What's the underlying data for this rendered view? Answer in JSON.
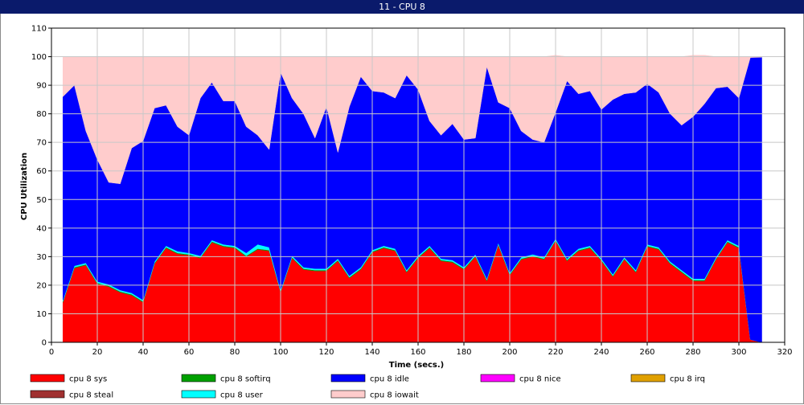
{
  "window": {
    "title": "11 - CPU 8"
  },
  "chart_data": {
    "type": "area",
    "title": "11 - CPU 8",
    "xlabel": "Time (secs.)",
    "ylabel": "CPU Utilization",
    "xlim": [
      0,
      320
    ],
    "ylim": [
      0,
      110
    ],
    "xticks": [
      0,
      20,
      40,
      60,
      80,
      100,
      120,
      140,
      160,
      180,
      200,
      220,
      240,
      260,
      280,
      300,
      320
    ],
    "yticks": [
      0,
      10,
      20,
      30,
      40,
      50,
      60,
      70,
      80,
      90,
      100,
      110
    ],
    "grid": true,
    "legend_position": "bottom",
    "x": [
      5,
      10,
      15,
      20,
      25,
      30,
      35,
      40,
      45,
      50,
      55,
      60,
      65,
      70,
      75,
      80,
      85,
      90,
      95,
      100,
      105,
      110,
      115,
      120,
      125,
      130,
      135,
      140,
      145,
      150,
      155,
      160,
      165,
      170,
      175,
      180,
      185,
      190,
      195,
      200,
      205,
      210,
      215,
      220,
      225,
      230,
      235,
      240,
      245,
      250,
      255,
      260,
      265,
      270,
      275,
      280,
      285,
      290,
      295,
      300,
      305,
      310
    ],
    "stack_order": [
      "cpu 8 sys",
      "cpu 8 softirq",
      "cpu 8 nice",
      "cpu 8 irq",
      "cpu 8 steal",
      "cpu 8 user",
      "cpu 8 idle",
      "cpu 8 iowait"
    ],
    "series": [
      {
        "name": "cpu 8 sys",
        "color": "#ff0000",
        "values": [
          14.0,
          26.0,
          27.0,
          20.5,
          19.5,
          17.5,
          16.5,
          14.0,
          27.5,
          33.0,
          31.0,
          30.5,
          29.5,
          35.0,
          33.5,
          33.0,
          30.0,
          32.5,
          32.0,
          17.5,
          29.5,
          25.5,
          25.0,
          25.0,
          28.5,
          22.5,
          25.5,
          31.5,
          33.0,
          32.0,
          24.5,
          29.5,
          33.0,
          28.5,
          28.0,
          25.5,
          30.0,
          21.5,
          34.0,
          23.5,
          29.0,
          30.0,
          29.0,
          35.5,
          28.5,
          32.0,
          33.0,
          28.5,
          23.0,
          29.0,
          24.5,
          33.5,
          32.5,
          27.5,
          24.5,
          21.5,
          21.5,
          29.0,
          35.0,
          33.0,
          1.0,
          0.0
        ]
      },
      {
        "name": "cpu 8 softirq",
        "color": "#00a000",
        "values": [
          0.3,
          0.3,
          0.3,
          0.3,
          0.3,
          0.3,
          0.3,
          0.3,
          0.3,
          0.3,
          0.3,
          0.3,
          0.3,
          0.3,
          0.3,
          0.3,
          0.3,
          0.3,
          0.3,
          0.3,
          0.3,
          0.3,
          0.3,
          0.3,
          0.3,
          0.3,
          0.3,
          0.3,
          0.3,
          0.3,
          0.3,
          0.3,
          0.3,
          0.3,
          0.3,
          0.3,
          0.3,
          0.3,
          0.3,
          0.3,
          0.3,
          0.3,
          0.3,
          0.3,
          0.3,
          0.3,
          0.3,
          0.3,
          0.3,
          0.3,
          0.3,
          0.3,
          0.3,
          0.3,
          0.3,
          0.3,
          0.3,
          0.3,
          0.3,
          0.3,
          0.0,
          0.0
        ]
      },
      {
        "name": "cpu 8 nice",
        "color": "#ff00ff",
        "values": [
          0,
          0,
          0,
          0,
          0,
          0,
          0,
          0,
          0,
          0,
          0,
          0,
          0,
          0,
          0,
          0,
          0,
          0,
          0,
          0,
          0,
          0,
          0,
          0,
          0,
          0,
          0,
          0,
          0,
          0,
          0,
          0,
          0,
          0,
          0,
          0,
          0,
          0,
          0,
          0,
          0,
          0,
          0,
          0,
          0,
          0,
          0,
          0,
          0,
          0,
          0,
          0,
          0,
          0,
          0,
          0,
          0,
          0,
          0,
          0,
          0,
          0
        ]
      },
      {
        "name": "cpu 8 irq",
        "color": "#e0a000",
        "values": [
          0,
          0,
          0,
          0,
          0,
          0,
          0,
          0,
          0,
          0,
          0,
          0,
          0,
          0,
          0,
          0,
          0,
          0,
          0,
          0,
          0,
          0,
          0,
          0,
          0,
          0,
          0,
          0,
          0,
          0,
          0,
          0,
          0,
          0,
          0,
          0,
          0,
          0,
          0,
          0,
          0,
          0,
          0,
          0,
          0,
          0,
          0,
          0,
          0,
          0,
          0,
          0,
          0,
          0,
          0,
          0,
          0,
          0,
          0,
          0,
          0,
          0
        ]
      },
      {
        "name": "cpu 8 steal",
        "color": "#a03030",
        "values": [
          0,
          0,
          0,
          0,
          0,
          0,
          0,
          0,
          0,
          0,
          0,
          0,
          0,
          0,
          0,
          0,
          0,
          0,
          0,
          0,
          0,
          0,
          0,
          0,
          0,
          0,
          0,
          0,
          0,
          0,
          0,
          0,
          0,
          0,
          0,
          0,
          0,
          0,
          0,
          0,
          0,
          0,
          0,
          0,
          0,
          0,
          0,
          0,
          0,
          0,
          0,
          0,
          0,
          0,
          0,
          0,
          0,
          0,
          0,
          0,
          0,
          0
        ]
      },
      {
        "name": "cpu 8 user",
        "color": "#00ffff",
        "values": [
          0.5,
          0.5,
          0.5,
          0.5,
          0.5,
          0.5,
          0.5,
          0.5,
          0.5,
          0.5,
          0.6,
          0.5,
          0.5,
          0.5,
          0.5,
          0.5,
          1.0,
          1.5,
          1.0,
          0.5,
          0.5,
          0.5,
          0.5,
          0.5,
          0.5,
          0.5,
          0.5,
          0.5,
          0.5,
          0.5,
          0.5,
          0.5,
          0.5,
          0.5,
          0.5,
          0.5,
          0.5,
          0.5,
          0.5,
          0.5,
          0.5,
          0.5,
          0.5,
          0.5,
          0.5,
          0.5,
          0.5,
          0.5,
          0.5,
          0.5,
          0.5,
          0.5,
          0.5,
          0.5,
          0.5,
          0.5,
          0.5,
          0.5,
          0.5,
          0.5,
          0.0,
          0.0
        ]
      },
      {
        "name": "cpu 8 idle",
        "color": "#0000ff",
        "values": [
          71.2,
          63.2,
          46.2,
          42.7,
          35.7,
          37.2,
          50.7,
          55.7,
          53.7,
          49.2,
          43.6,
          41.2,
          55.2,
          55.2,
          50.2,
          50.7,
          44.2,
          38.2,
          34.2,
          76.2,
          55.2,
          53.7,
          45.7,
          56.7,
          37.2,
          59.2,
          66.7,
          55.7,
          53.7,
          52.7,
          68.2,
          58.2,
          43.7,
          43.2,
          47.7,
          44.7,
          40.7,
          74.2,
          49.2,
          57.7,
          44.2,
          40.2,
          40.2,
          44.2,
          62.2,
          54.2,
          54.2,
          52.2,
          61.2,
          57.2,
          62.2,
          56.2,
          54.2,
          51.7,
          50.7,
          56.7,
          61.2,
          59.2,
          53.7,
          51.7,
          98.7,
          99.8
        ]
      },
      {
        "name": "cpu 8 iowait",
        "color": "#ffcccc",
        "values": [
          14.0,
          10.0,
          26.0,
          36.0,
          44.0,
          44.5,
          32.0,
          29.5,
          18.0,
          17.0,
          24.5,
          27.5,
          14.5,
          9.0,
          15.5,
          15.5,
          24.5,
          27.5,
          32.5,
          5.5,
          14.5,
          20.0,
          28.5,
          17.5,
          33.5,
          17.5,
          7.0,
          12.0,
          12.5,
          14.5,
          6.5,
          11.5,
          22.5,
          27.5,
          23.5,
          29.0,
          28.5,
          3.5,
          16.0,
          18.0,
          26.0,
          29.0,
          30.0,
          20.0,
          8.5,
          13.0,
          12.0,
          18.5,
          15.0,
          13.0,
          12.5,
          9.5,
          12.5,
          20.0,
          24.0,
          21.5,
          17.0,
          11.0,
          10.5,
          14.5,
          0.3,
          0.2
        ]
      }
    ],
    "legend": [
      {
        "label": "cpu 8 sys",
        "color": "#ff0000"
      },
      {
        "label": "cpu 8 softirq",
        "color": "#00a000"
      },
      {
        "label": "cpu 8 idle",
        "color": "#0000ff"
      },
      {
        "label": "cpu 8 nice",
        "color": "#ff00ff"
      },
      {
        "label": "cpu 8 irq",
        "color": "#e0a000"
      },
      {
        "label": "cpu 8 steal",
        "color": "#a03030"
      },
      {
        "label": "cpu 8 user",
        "color": "#00ffff"
      },
      {
        "label": "cpu 8 iowait",
        "color": "#ffcccc"
      }
    ]
  }
}
